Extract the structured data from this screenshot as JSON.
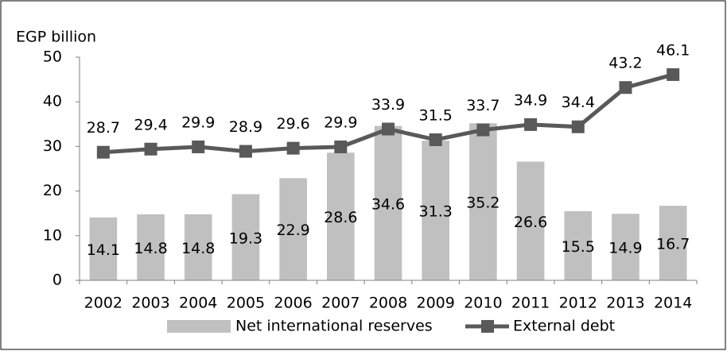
{
  "chart_data": {
    "type": "bar",
    "y_label": "EGP billion",
    "categories": [
      "2002",
      "2003",
      "2004",
      "2005",
      "2006",
      "2007",
      "2008",
      "2009",
      "2010",
      "2011",
      "2012",
      "2013",
      "2014"
    ],
    "series": [
      {
        "name": "Net international reserves",
        "type": "bar",
        "color": "#c0c0c0",
        "values": [
          14.1,
          14.8,
          14.8,
          19.3,
          22.9,
          28.6,
          34.6,
          31.3,
          35.2,
          26.6,
          15.5,
          14.9,
          16.7
        ]
      },
      {
        "name": "External debt",
        "type": "line",
        "color": "#595959",
        "values": [
          28.7,
          29.4,
          29.9,
          28.9,
          29.6,
          29.9,
          33.9,
          31.5,
          33.7,
          34.9,
          34.4,
          43.2,
          46.1
        ]
      }
    ],
    "ylim": [
      0,
      50
    ],
    "yticks": [
      0,
      10,
      20,
      30,
      40,
      50
    ],
    "legend": "bottom"
  }
}
